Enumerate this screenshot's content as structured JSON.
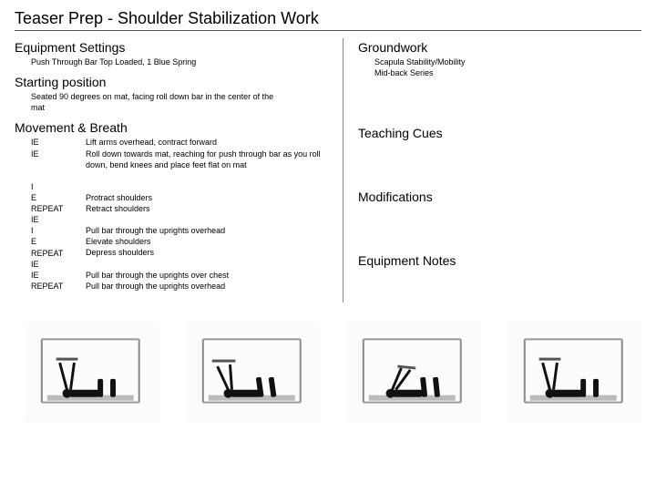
{
  "title": "Teaser Prep - Shoulder Stabilization Work",
  "left": {
    "equipment": {
      "heading": "Equipment Settings",
      "text": "Push Through Bar Top Loaded, 1 Blue Spring"
    },
    "starting": {
      "heading": "Starting position",
      "text": "Seated 90 degrees on mat, facing roll down bar in the center of the mat"
    },
    "movement": {
      "heading": "Movement & Breath",
      "cues": [
        "IE",
        "IE",
        "",
        "",
        "I",
        "E",
        "REPEAT",
        "IE",
        "I",
        "E",
        "REPEAT",
        "IE",
        "IE",
        "REPEAT"
      ],
      "descs": [
        "Lift arms overhead, contract forward",
        "Roll down towards mat, reaching for push through bar as you roll down, bend knees and place feet flat on mat",
        "",
        "",
        "Protract shoulders",
        "Retract shoulders",
        "",
        "Pull bar through the uprights overhead",
        "Elevate shoulders",
        "Depress shoulders",
        "",
        "Pull bar through the uprights over chest",
        "Pull bar through the uprights overhead",
        ""
      ]
    }
  },
  "right": {
    "groundwork": {
      "heading": "Groundwork",
      "lines": [
        "Scapula Stability/Mobility",
        "Mid-back Series"
      ]
    },
    "teaching": {
      "heading": "Teaching Cues"
    },
    "modifications": {
      "heading": "Modifications"
    },
    "equipnotes": {
      "heading": "Equipment Notes"
    }
  }
}
